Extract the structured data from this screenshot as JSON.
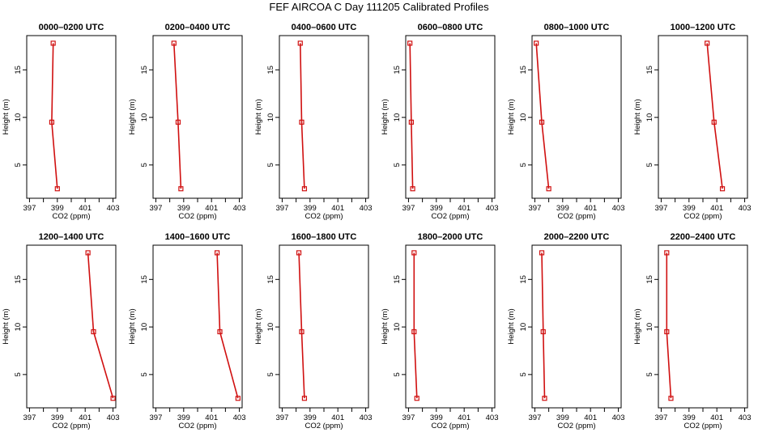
{
  "title": "FEF AIRCOA C  Day 111205  Calibrated Profiles",
  "chart_data": {
    "type": "line",
    "xlabel": "CO2 (ppm)",
    "ylabel": "Height (m)",
    "xlim": [
      396.8,
      403.2
    ],
    "ylim": [
      1.5,
      18.6
    ],
    "x_ticks": [
      "397",
      "399",
      "401",
      "403"
    ],
    "y_ticks": [
      "5",
      "10",
      "15"
    ],
    "grid": false,
    "color": "#d01010",
    "heights": [
      17.8,
      9.5,
      2.5
    ],
    "panels": [
      {
        "title": "0000–0200 UTC",
        "co2": [
          398.7,
          398.6,
          399.0
        ]
      },
      {
        "title": "0200–0400 UTC",
        "co2": [
          398.3,
          398.6,
          398.8
        ]
      },
      {
        "title": "0400–0600 UTC",
        "co2": [
          398.3,
          398.4,
          398.6
        ]
      },
      {
        "title": "0600–0800 UTC",
        "co2": [
          397.1,
          397.2,
          397.3
        ]
      },
      {
        "title": "0800–1000 UTC",
        "co2": [
          397.1,
          397.5,
          398.0
        ]
      },
      {
        "title": "1000–1200 UTC",
        "co2": [
          400.3,
          400.8,
          401.4
        ]
      },
      {
        "title": "1200–1400 UTC",
        "co2": [
          401.2,
          401.6,
          403.0
        ]
      },
      {
        "title": "1400–1600 UTC",
        "co2": [
          401.4,
          401.6,
          402.9
        ]
      },
      {
        "title": "1600–1800 UTC",
        "co2": [
          398.2,
          398.4,
          398.6
        ]
      },
      {
        "title": "1800–2000 UTC",
        "co2": [
          397.4,
          397.4,
          397.6
        ]
      },
      {
        "title": "2000–2200 UTC",
        "co2": [
          397.5,
          397.6,
          397.7
        ]
      },
      {
        "title": "2200–2400 UTC",
        "co2": [
          397.4,
          397.4,
          397.7
        ]
      }
    ]
  }
}
